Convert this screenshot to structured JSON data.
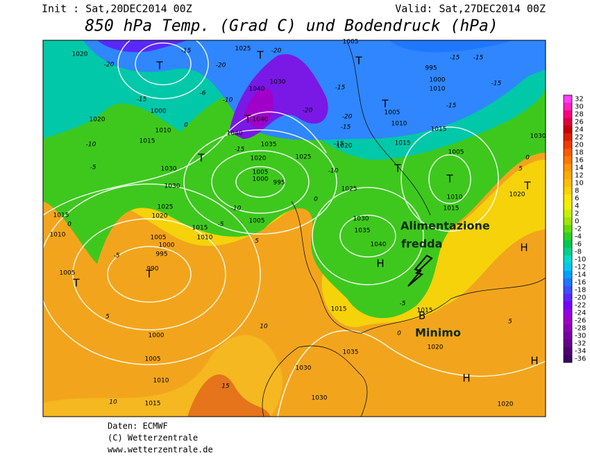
{
  "header": {
    "init": "Init : Sat,20DEC2014 00Z",
    "valid": "Valid: Sat,27DEC2014 00Z",
    "title": "850 hPa Temp. (Grad C) und Bodendruck (hPa)"
  },
  "footer": [
    "Daten: ECMWF",
    "(C) Wetterzentrale",
    "www.wetterzentrale.de"
  ],
  "colorbar": {
    "ticks": [
      32,
      30,
      28,
      26,
      24,
      22,
      20,
      18,
      16,
      14,
      12,
      10,
      8,
      6,
      4,
      2,
      0,
      -2,
      -4,
      -6,
      -8,
      -10,
      -12,
      -14,
      -16,
      -18,
      -20,
      -22,
      -24,
      -26,
      -28,
      -30,
      -32,
      -34,
      -36
    ],
    "colors": [
      "#ff40ff",
      "#ff20c0",
      "#ff0080",
      "#e00040",
      "#c80000",
      "#dc1e00",
      "#f03c00",
      "#ff5a00",
      "#ff7800",
      "#ff9600",
      "#ffaa00",
      "#ffbe00",
      "#ffd200",
      "#ffe600",
      "#f0f000",
      "#c8f000",
      "#a0e600",
      "#64dc00",
      "#28d228",
      "#00c850",
      "#00d28c",
      "#00dcc8",
      "#00c8f0",
      "#00a0ff",
      "#1e78ff",
      "#3c50ff",
      "#5a28ff",
      "#7800ff",
      "#9600e6",
      "#a000c8",
      "#8c00b4",
      "#7800a0",
      "#64008c",
      "#500078",
      "#3c0064"
    ]
  },
  "centers": [
    "T",
    "T",
    "T",
    "T",
    "T",
    "T",
    "T",
    "T",
    "T",
    "T",
    "T",
    "H",
    "H",
    "H",
    "H",
    "B"
  ],
  "pressure_labels": [
    1020,
    1010,
    1015,
    1000,
    1030,
    1030,
    1025,
    1020,
    1015,
    1010,
    1005,
    1000,
    995,
    990,
    1015,
    1010,
    1005,
    1000,
    1005,
    1010,
    1015,
    1020,
    1040,
    1040,
    1035,
    1040,
    1030,
    1020,
    1005,
    1000,
    995,
    1025,
    1005,
    1025,
    1030,
    1035,
    1040,
    1015,
    1035,
    1030,
    1030,
    1005,
    1010,
    1015,
    1015,
    1005,
    1010,
    1015,
    1000,
    1010,
    995,
    1015,
    1020,
    1020,
    1030,
    1020,
    1005,
    1025,
    1020
  ],
  "temp_labels": [
    -15,
    -20,
    -6,
    -15,
    -10,
    -10,
    -5,
    0,
    -15,
    -10,
    -10,
    -5,
    0,
    -5,
    -5,
    0,
    -15,
    -15,
    -15,
    -15,
    -20,
    -20,
    -20,
    -20,
    -15,
    -15,
    5,
    5,
    10,
    15,
    10,
    5,
    0,
    5,
    -15,
    0
  ],
  "annotations": [
    "Alimentazione",
    "fredda",
    "Minimo"
  ]
}
